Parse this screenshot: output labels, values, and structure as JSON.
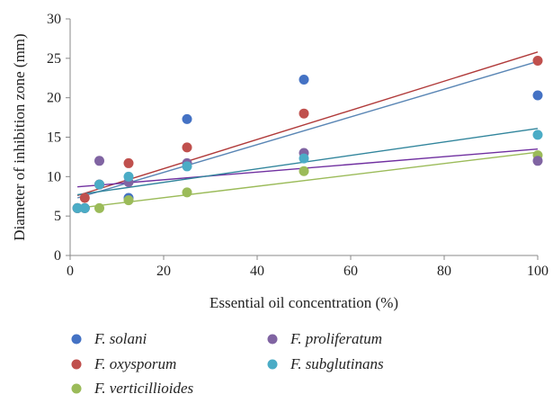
{
  "chart_data": {
    "type": "scatter",
    "xlabel": "Essential oil concentration (%)",
    "ylabel": "Diameter of inhibition zone (mm)",
    "xlim": [
      0,
      100
    ],
    "ylim": [
      0,
      30
    ],
    "xticks": [
      0,
      20,
      40,
      60,
      80,
      100
    ],
    "yticks": [
      0,
      5,
      10,
      15,
      20,
      25,
      30
    ],
    "grid": false,
    "legend_position": "bottom",
    "series": [
      {
        "name": "F. solani",
        "color": "#4472c4",
        "line_color": "#5a86b5",
        "x": [
          1.56,
          3.13,
          6.25,
          12.5,
          25,
          50,
          100
        ],
        "y": [
          6.0,
          6.0,
          9.0,
          7.3,
          17.3,
          22.3,
          20.3
        ],
        "trend": [
          7.3,
          24.6
        ]
      },
      {
        "name": "F. oxysporum",
        "color": "#c0504d",
        "line_color": "#b03a3a",
        "x": [
          1.56,
          3.13,
          6.25,
          12.5,
          25,
          50,
          100
        ],
        "y": [
          6.0,
          7.3,
          9.0,
          11.7,
          13.7,
          18.0,
          24.7
        ],
        "trend": [
          7.6,
          25.8
        ]
      },
      {
        "name": "F. verticillioides",
        "color": "#9bbb59",
        "line_color": "#9bbb59",
        "x": [
          1.56,
          3.13,
          6.25,
          12.5,
          25,
          50,
          100
        ],
        "y": [
          6.0,
          6.0,
          6.0,
          7.0,
          8.0,
          10.7,
          12.7
        ],
        "trend": [
          6.0,
          13.1
        ]
      },
      {
        "name": "F. proliferatum",
        "color": "#8064a2",
        "line_color": "#7030a0",
        "x": [
          1.56,
          3.13,
          6.25,
          12.5,
          25,
          50,
          100
        ],
        "y": [
          6.0,
          6.0,
          12.0,
          9.3,
          11.7,
          13.0,
          12.0
        ],
        "trend": [
          8.7,
          13.5
        ]
      },
      {
        "name": "F. subglutinans",
        "color": "#4bacc6",
        "line_color": "#31859c",
        "x": [
          1.56,
          3.13,
          6.25,
          12.5,
          25,
          50,
          100
        ],
        "y": [
          6.0,
          6.0,
          9.0,
          10.0,
          11.3,
          12.3,
          15.3
        ],
        "trend": [
          7.7,
          16.1
        ]
      }
    ]
  }
}
